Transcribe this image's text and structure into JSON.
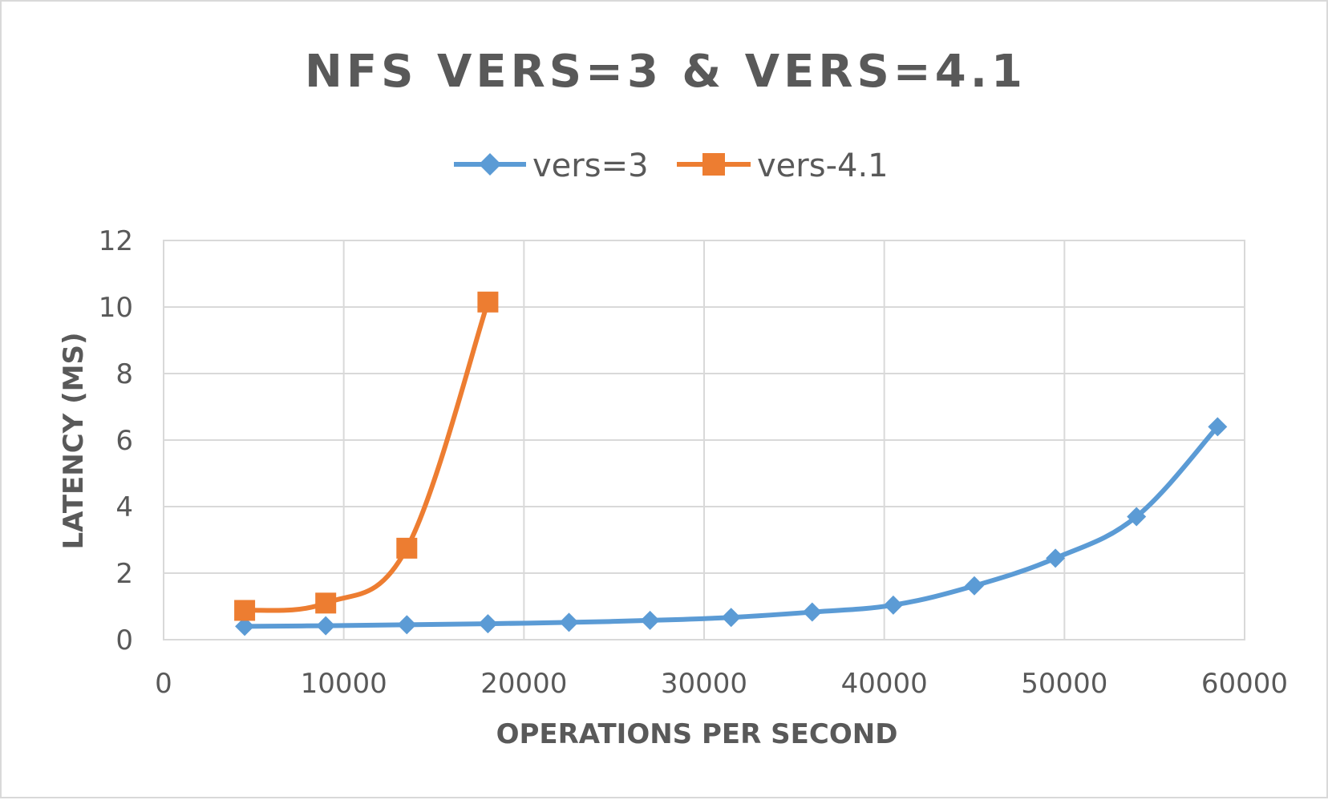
{
  "chart_data": {
    "type": "line",
    "title": "NFS VERS=3 & VERS=4.1",
    "xlabel": "OPERATIONS PER SECOND",
    "ylabel": "LATENCY (MS)",
    "xlim": [
      0,
      60000
    ],
    "ylim": [
      0,
      12
    ],
    "x_ticks": [
      "0",
      "10000",
      "20000",
      "30000",
      "40000",
      "50000",
      "60000"
    ],
    "y_ticks": [
      "0",
      "2",
      "4",
      "6",
      "8",
      "10",
      "12"
    ],
    "grid": true,
    "legend_position": "top",
    "series": [
      {
        "name": "vers=3",
        "color": "#5b9bd5",
        "marker": "diamond",
        "x": [
          4500,
          9000,
          13500,
          18000,
          22500,
          27000,
          31500,
          36000,
          40500,
          45000,
          49500,
          54000,
          58500
        ],
        "y": [
          0.4,
          0.42,
          0.45,
          0.48,
          0.52,
          0.58,
          0.67,
          0.83,
          1.04,
          1.62,
          2.45,
          3.7,
          6.4
        ]
      },
      {
        "name": "vers-4.1",
        "color": "#ed7d31",
        "marker": "square",
        "x": [
          4500,
          9000,
          13500,
          18000
        ],
        "y": [
          0.88,
          1.1,
          2.75,
          10.15
        ]
      }
    ]
  }
}
